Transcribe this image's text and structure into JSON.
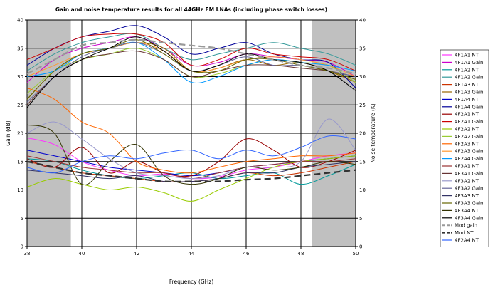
{
  "chart_data": {
    "type": "line",
    "title": "Gain and noise temperature results for all 44GHz FM LNAs (including phase switch losses)",
    "xlabel": "Frequency (GHz)",
    "ylabel": "Gain (dB)",
    "y2label": "Noise temperature (K)",
    "xlim": [
      38,
      50
    ],
    "ylim": [
      0,
      40
    ],
    "y2lim": [
      0,
      40
    ],
    "xticks": [
      "38",
      "40",
      "42",
      "44",
      "46",
      "48",
      "50"
    ],
    "yticks": [
      "0",
      "5",
      "10",
      "15",
      "20",
      "25",
      "30",
      "35",
      "40"
    ],
    "grid": true,
    "legend_position": "right",
    "shaded_bands": [
      [
        38,
        39.6
      ],
      [
        48.4,
        50
      ]
    ],
    "series": [
      {
        "name": "4F1A1 NT",
        "color": "#ff33ff",
        "dash": "solid",
        "x": [
          38,
          39,
          40,
          41,
          42,
          43,
          44,
          45,
          46,
          47,
          48,
          49,
          50
        ],
        "y": [
          19.2,
          18,
          15,
          13.5,
          12.5,
          12.8,
          12,
          12.3,
          13.5,
          14,
          15,
          16,
          16.5
        ]
      },
      {
        "name": "4F1A1 Gain",
        "color": "#cc00cc",
        "dash": "solid",
        "x": [
          38,
          39,
          40,
          41,
          42,
          43,
          44,
          45,
          46,
          47,
          48,
          49,
          50
        ],
        "y": [
          29,
          33,
          35,
          36,
          37,
          35,
          32,
          32.5,
          34,
          33.5,
          33,
          32.5,
          30
        ]
      },
      {
        "name": "4F1A2 NT",
        "color": "#009999",
        "dash": "solid",
        "x": [
          38,
          39,
          40,
          41,
          42,
          43,
          44,
          45,
          46,
          47,
          48,
          49,
          50
        ],
        "y": [
          15.5,
          15,
          13.5,
          12.5,
          12,
          12.5,
          13,
          12,
          12.5,
          13,
          11,
          12.5,
          14.5
        ]
      },
      {
        "name": "4F1A2 Gain",
        "color": "#339999",
        "dash": "solid",
        "x": [
          38,
          39,
          40,
          41,
          42,
          43,
          44,
          45,
          46,
          47,
          48,
          49,
          50
        ],
        "y": [
          31,
          34,
          36,
          37,
          37.5,
          35,
          33,
          34,
          35,
          36,
          35,
          34,
          32
        ]
      },
      {
        "name": "4F1A3 NT",
        "color": "#cc3300",
        "dash": "solid",
        "x": [
          38,
          39,
          40,
          41,
          42,
          43,
          44,
          45,
          46,
          47,
          48,
          49,
          50
        ],
        "y": [
          15,
          14,
          13,
          12.5,
          12,
          11.5,
          11.5,
          12,
          13,
          12.5,
          13,
          14,
          15
        ]
      },
      {
        "name": "4F1A3 Gain",
        "color": "#996600",
        "dash": "solid",
        "x": [
          38,
          39,
          40,
          41,
          42,
          43,
          44,
          45,
          46,
          47,
          48,
          49,
          50
        ],
        "y": [
          26,
          31,
          34,
          35,
          36,
          35,
          31,
          31.5,
          33,
          32,
          32.5,
          31,
          29
        ]
      },
      {
        "name": "4F1A4 NT",
        "color": "#0000cc",
        "dash": "solid",
        "x": [
          38,
          39,
          40,
          41,
          42,
          43,
          44,
          45,
          46,
          47,
          48,
          49,
          50
        ],
        "y": [
          17,
          16,
          15,
          14,
          13.5,
          13,
          12.5,
          13,
          14,
          14.5,
          15,
          15.5,
          16
        ]
      },
      {
        "name": "4F1A4 Gain",
        "color": "#000099",
        "dash": "solid",
        "x": [
          38,
          39,
          40,
          41,
          42,
          43,
          44,
          45,
          46,
          47,
          48,
          49,
          50
        ],
        "y": [
          32,
          35,
          37,
          38,
          39,
          37,
          34,
          35,
          36,
          34,
          33,
          32.5,
          28
        ]
      },
      {
        "name": "4F2A1 NT",
        "color": "#990000",
        "dash": "solid",
        "x": [
          38,
          39,
          40,
          41,
          42,
          43,
          44,
          45,
          46,
          47,
          48,
          49,
          50
        ],
        "y": [
          15.5,
          14,
          17.5,
          13,
          15,
          13,
          12.5,
          15,
          19,
          17,
          14,
          15,
          17
        ]
      },
      {
        "name": "4F2A1 Gain",
        "color": "#cc0000",
        "dash": "solid",
        "x": [
          38,
          39,
          40,
          41,
          42,
          43,
          44,
          45,
          46,
          47,
          48,
          49,
          50
        ],
        "y": [
          33,
          35,
          37,
          37.5,
          37.5,
          36,
          32,
          33,
          35,
          34,
          33.5,
          33,
          31
        ]
      },
      {
        "name": "4F2A2 NT",
        "color": "#99cc00",
        "dash": "solid",
        "x": [
          38,
          39,
          40,
          41,
          42,
          43,
          44,
          45,
          46,
          47,
          48,
          49,
          50
        ],
        "y": [
          10.5,
          12,
          11,
          10,
          10.5,
          9.5,
          8,
          10,
          12,
          14,
          15,
          15.5,
          16
        ]
      },
      {
        "name": "4F2A2 Gain",
        "color": "#99cc33",
        "dash": "solid",
        "x": [
          38,
          39,
          40,
          41,
          42,
          43,
          44,
          45,
          46,
          47,
          48,
          49,
          50
        ],
        "y": [
          27,
          31,
          33,
          34,
          35,
          33,
          30,
          30.5,
          32,
          33,
          32.5,
          32,
          29
        ]
      },
      {
        "name": "4F2A3 NT",
        "color": "#ff6600",
        "dash": "solid",
        "x": [
          38,
          39,
          40,
          41,
          42,
          43,
          44,
          45,
          46,
          47,
          48,
          49,
          50
        ],
        "y": [
          28,
          26,
          22,
          20,
          15,
          13.5,
          13,
          14,
          15,
          15.5,
          16,
          16,
          16.5
        ]
      },
      {
        "name": "4F2A3 Gain",
        "color": "#ff9933",
        "dash": "solid",
        "x": [
          38,
          39,
          40,
          41,
          42,
          43,
          44,
          45,
          46,
          47,
          48,
          49,
          50
        ],
        "y": [
          30,
          32,
          34,
          35,
          36,
          34.5,
          31,
          31.5,
          33,
          33.5,
          33,
          32,
          30
        ]
      },
      {
        "name": "4F2A4 Gain",
        "color": "#0099ff",
        "dash": "solid",
        "x": [
          38,
          39,
          40,
          41,
          42,
          43,
          44,
          45,
          46,
          47,
          48,
          49,
          50
        ],
        "y": [
          30,
          31,
          34,
          35,
          36,
          33,
          29,
          30,
          32,
          33,
          32.5,
          32,
          31
        ]
      },
      {
        "name": "4F3A1 NT",
        "color": "#993333",
        "dash": "solid",
        "x": [
          38,
          39,
          40,
          41,
          42,
          43,
          44,
          45,
          46,
          47,
          48,
          49,
          50
        ],
        "y": [
          16,
          15,
          14,
          13.5,
          13,
          13,
          12,
          13,
          14,
          14.5,
          15,
          15,
          15.5
        ]
      },
      {
        "name": "4F3A1 Gain",
        "color": "#663333",
        "dash": "solid",
        "x": [
          38,
          39,
          40,
          41,
          42,
          43,
          44,
          45,
          46,
          47,
          48,
          49,
          50
        ],
        "y": [
          25,
          30,
          33,
          34,
          34.5,
          33,
          30,
          31,
          32,
          32,
          31.5,
          31,
          30
        ]
      },
      {
        "name": "4F3A2 NT",
        "color": "#9999cc",
        "dash": "solid",
        "x": [
          38,
          39,
          40,
          41,
          42,
          43,
          44,
          45,
          46,
          47,
          48,
          49,
          50
        ],
        "y": [
          20,
          22,
          19,
          15.5,
          13,
          12.5,
          12,
          12.5,
          14,
          14,
          15,
          22.5,
          17
        ]
      },
      {
        "name": "4F3A2 Gain",
        "color": "#666699",
        "dash": "solid",
        "x": [
          38,
          39,
          40,
          41,
          42,
          43,
          44,
          45,
          46,
          47,
          48,
          49,
          50
        ],
        "y": [
          25.5,
          30,
          33.5,
          35,
          36,
          34,
          31,
          32,
          33.5,
          32,
          32,
          31,
          30
        ]
      },
      {
        "name": "4F3A3 NT",
        "color": "#333366",
        "dash": "solid",
        "x": [
          38,
          39,
          40,
          41,
          42,
          43,
          44,
          45,
          46,
          47,
          48,
          49,
          50
        ],
        "y": [
          13.5,
          13,
          12.5,
          12,
          12.5,
          11.5,
          11.5,
          12,
          13,
          13,
          14,
          14.5,
          15
        ]
      },
      {
        "name": "4F3A3 Gain",
        "color": "#666600",
        "dash": "solid",
        "x": [
          38,
          39,
          40,
          41,
          42,
          43,
          44,
          45,
          46,
          47,
          48,
          49,
          50
        ],
        "y": [
          26,
          31,
          34,
          35,
          36.5,
          34,
          31,
          31,
          33,
          33,
          32,
          31,
          29.5
        ]
      },
      {
        "name": "4F3A4 NT",
        "color": "#333300",
        "dash": "solid",
        "x": [
          38,
          39,
          40,
          41,
          42,
          43,
          44,
          45,
          46,
          47,
          48,
          49,
          50
        ],
        "y": [
          21.5,
          20,
          11,
          15,
          18,
          12.5,
          11,
          12,
          14,
          13.5,
          14,
          15,
          14.5
        ]
      },
      {
        "name": "4F3A4 Gain",
        "color": "#000000",
        "dash": "solid",
        "x": [
          38,
          39,
          40,
          41,
          42,
          43,
          44,
          45,
          46,
          47,
          48,
          49,
          50
        ],
        "y": [
          24.5,
          30,
          33,
          35,
          37,
          34.5,
          31,
          32,
          34,
          33,
          32.5,
          31,
          27.5
        ]
      },
      {
        "name": "Mod gain",
        "color": "#999999",
        "dash": "dash",
        "x": [
          38,
          39,
          40,
          41,
          42,
          43,
          44,
          45,
          46,
          47,
          48,
          49,
          50
        ],
        "y": [
          30.5,
          33,
          35.5,
          36,
          36.5,
          36,
          35.5,
          35,
          34,
          33,
          32,
          31.5,
          30.5
        ]
      },
      {
        "name": "Mod NT",
        "color": "#333333",
        "dash": "dash",
        "x": [
          38,
          39,
          40,
          41,
          42,
          43,
          44,
          45,
          46,
          47,
          48,
          49,
          50
        ],
        "y": [
          15,
          14,
          13,
          12.5,
          12,
          11.5,
          11.5,
          11.5,
          11.8,
          12,
          12.5,
          13,
          13.5
        ]
      },
      {
        "name": "4F2A4 NT",
        "color": "#3366ff",
        "dash": "solid",
        "x": [
          38,
          39,
          40,
          41,
          42,
          43,
          44,
          45,
          46,
          47,
          48,
          49,
          50
        ],
        "y": [
          14,
          13,
          15,
          16,
          15.5,
          16.5,
          17,
          15.5,
          17,
          16,
          17.5,
          19.5,
          19
        ]
      }
    ]
  }
}
